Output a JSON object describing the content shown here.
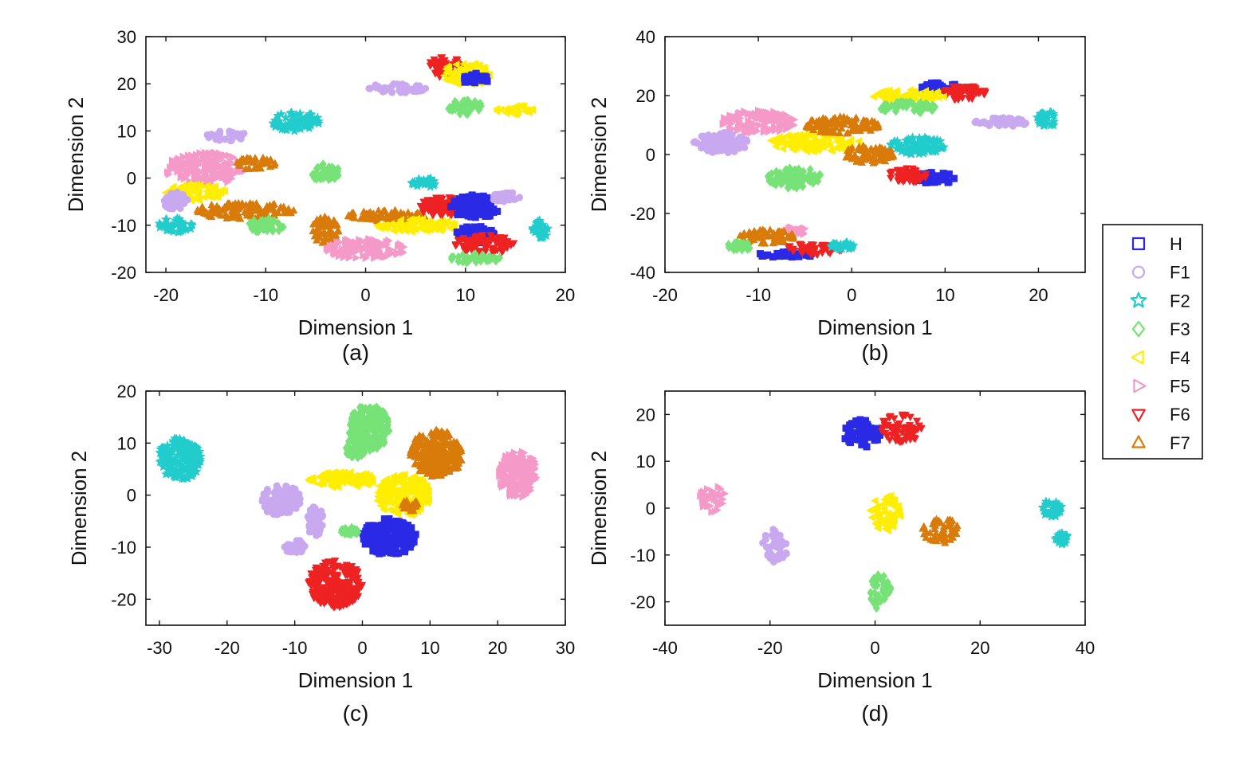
{
  "legend": {
    "entries": [
      {
        "label": "H",
        "marker": "square",
        "color": "#2a2ae6"
      },
      {
        "label": "F1",
        "marker": "circle",
        "color": "#c8a8ee"
      },
      {
        "label": "F2",
        "marker": "star",
        "color": "#22cccc"
      },
      {
        "label": "F3",
        "marker": "diamond",
        "color": "#77e277"
      },
      {
        "label": "F4",
        "marker": "triangle-left",
        "color": "#ffee00"
      },
      {
        "label": "F5",
        "marker": "triangle-right",
        "color": "#f59ac8"
      },
      {
        "label": "F6",
        "marker": "triangle-down",
        "color": "#ee2222"
      },
      {
        "label": "F7",
        "marker": "triangle-up",
        "color": "#d97b0a"
      }
    ]
  },
  "chart_data": [
    {
      "panel": "(a)",
      "type": "scatter",
      "xlabel": "Dimension 1",
      "ylabel": "Dimension 2",
      "xlim": [
        -22,
        20
      ],
      "ylim": [
        -20,
        30
      ],
      "xticks": [
        -20,
        -10,
        0,
        10,
        20
      ],
      "yticks": [
        -20,
        -10,
        0,
        10,
        20,
        30
      ],
      "clusters": [
        {
          "series": "F6",
          "cx": 8,
          "cy": 23.5,
          "rx": 1.8,
          "ry": 2.2
        },
        {
          "series": "F4",
          "cx": 10,
          "cy": 22,
          "rx": 2.5,
          "ry": 2.5
        },
        {
          "series": "H",
          "cx": 11,
          "cy": 21,
          "rx": 1.3,
          "ry": 1.2
        },
        {
          "series": "F1",
          "cx": 3,
          "cy": 19,
          "rx": 3,
          "ry": 1.0
        },
        {
          "series": "F3",
          "cx": 10,
          "cy": 15,
          "rx": 1.8,
          "ry": 1.5
        },
        {
          "series": "F4",
          "cx": 15,
          "cy": 14.5,
          "rx": 2,
          "ry": 1.0
        },
        {
          "series": "F2",
          "cx": -7,
          "cy": 12,
          "rx": 2.5,
          "ry": 2.0
        },
        {
          "series": "F1",
          "cx": -14,
          "cy": 9,
          "rx": 2,
          "ry": 1.2
        },
        {
          "series": "F5",
          "cx": -16,
          "cy": 2,
          "rx": 4,
          "ry": 3.5
        },
        {
          "series": "F7",
          "cx": -11,
          "cy": 3,
          "rx": 2,
          "ry": 1.5
        },
        {
          "series": "F3",
          "cx": -4,
          "cy": 1,
          "rx": 1.5,
          "ry": 2.0
        },
        {
          "series": "F4",
          "cx": -17,
          "cy": -3,
          "rx": 3,
          "ry": 1.8
        },
        {
          "series": "F1",
          "cx": -19,
          "cy": -5,
          "rx": 1.2,
          "ry": 2.0
        },
        {
          "series": "F2",
          "cx": -19,
          "cy": -10,
          "rx": 1.8,
          "ry": 1.5
        },
        {
          "series": "F7",
          "cx": -12,
          "cy": -7,
          "rx": 5,
          "ry": 1.8
        },
        {
          "series": "F7",
          "cx": -4,
          "cy": -11,
          "rx": 1.5,
          "ry": 3.0
        },
        {
          "series": "F3",
          "cx": -10,
          "cy": -10,
          "rx": 2,
          "ry": 1.5
        },
        {
          "series": "F7",
          "cx": 2,
          "cy": -8,
          "rx": 4,
          "ry": 1.2
        },
        {
          "series": "F4",
          "cx": 5,
          "cy": -10,
          "rx": 4,
          "ry": 1.5
        },
        {
          "series": "F6",
          "cx": 8,
          "cy": -6,
          "rx": 3,
          "ry": 2.0
        },
        {
          "series": "H",
          "cx": 11,
          "cy": -6,
          "rx": 2.5,
          "ry": 2.5
        },
        {
          "series": "F1",
          "cx": 14,
          "cy": -4,
          "rx": 1.5,
          "ry": 1.0
        },
        {
          "series": "F2",
          "cx": 6,
          "cy": -1,
          "rx": 1.5,
          "ry": 1.0
        },
        {
          "series": "F5",
          "cx": 0,
          "cy": -15,
          "rx": 4,
          "ry": 2.2
        },
        {
          "series": "H",
          "cx": 11,
          "cy": -12,
          "rx": 2,
          "ry": 1.8
        },
        {
          "series": "F6",
          "cx": 12,
          "cy": -14,
          "rx": 3,
          "ry": 2.0
        },
        {
          "series": "F3",
          "cx": 11,
          "cy": -17,
          "rx": 2.5,
          "ry": 1.0
        },
        {
          "series": "F2",
          "cx": 17.5,
          "cy": -11,
          "rx": 0.8,
          "ry": 2.0
        }
      ]
    },
    {
      "panel": "(b)",
      "type": "scatter",
      "xlabel": "Dimension 1",
      "ylabel": "Dimension 2",
      "xlim": [
        -20,
        25
      ],
      "ylim": [
        -40,
        40
      ],
      "xticks": [
        -20,
        -10,
        0,
        10,
        20
      ],
      "yticks": [
        -40,
        -20,
        0,
        20,
        40
      ],
      "clusters": [
        {
          "series": "H",
          "cx": 9.5,
          "cy": 23,
          "rx": 2,
          "ry": 1.5
        },
        {
          "series": "F6",
          "cx": 12,
          "cy": 21,
          "rx": 2.5,
          "ry": 2.5
        },
        {
          "series": "F4",
          "cx": 6,
          "cy": 20,
          "rx": 4,
          "ry": 2.0
        },
        {
          "series": "F3",
          "cx": 6,
          "cy": 16,
          "rx": 3,
          "ry": 2.0
        },
        {
          "series": "F1",
          "cx": 16,
          "cy": 11,
          "rx": 3,
          "ry": 1.5
        },
        {
          "series": "F2",
          "cx": 21,
          "cy": 12,
          "rx": 1.2,
          "ry": 2.5
        },
        {
          "series": "F5",
          "cx": -10,
          "cy": 11,
          "rx": 4,
          "ry": 4.0
        },
        {
          "series": "F1",
          "cx": -14,
          "cy": 4,
          "rx": 3,
          "ry": 3.5
        },
        {
          "series": "F4",
          "cx": -4,
          "cy": 4,
          "rx": 5,
          "ry": 3.0
        },
        {
          "series": "F7",
          "cx": -1,
          "cy": 10,
          "rx": 4,
          "ry": 3.0
        },
        {
          "series": "F7",
          "cx": 2,
          "cy": 0,
          "rx": 3,
          "ry": 3.0
        },
        {
          "series": "F2",
          "cx": 7,
          "cy": 3,
          "rx": 3,
          "ry": 3.0
        },
        {
          "series": "H",
          "cx": 9,
          "cy": -8,
          "rx": 2,
          "ry": 2.0
        },
        {
          "series": "F6",
          "cx": 6,
          "cy": -7,
          "rx": 2,
          "ry": 2.5
        },
        {
          "series": "F3",
          "cx": -6,
          "cy": -8,
          "rx": 3,
          "ry": 3.5
        },
        {
          "series": "F5",
          "cx": -6,
          "cy": -26,
          "rx": 1.2,
          "ry": 1.5
        },
        {
          "series": "F7",
          "cx": -9,
          "cy": -28,
          "rx": 3,
          "ry": 2.5
        },
        {
          "series": "F3",
          "cx": -12,
          "cy": -31,
          "rx": 1.5,
          "ry": 1.5
        },
        {
          "series": "H",
          "cx": -7,
          "cy": -34,
          "rx": 3,
          "ry": 1.0
        },
        {
          "series": "F6",
          "cx": -4,
          "cy": -32,
          "rx": 3,
          "ry": 2.0
        },
        {
          "series": "F2",
          "cx": -1,
          "cy": -31,
          "rx": 1.2,
          "ry": 1.5
        }
      ]
    },
    {
      "panel": "(c)",
      "type": "scatter",
      "xlabel": "Dimension 1",
      "ylabel": "Dimension 2",
      "xlim": [
        -32,
        30
      ],
      "ylim": [
        -25,
        20
      ],
      "xticks": [
        -30,
        -20,
        -10,
        0,
        10,
        20,
        30
      ],
      "yticks": [
        -20,
        -10,
        0,
        10,
        20
      ],
      "clusters": [
        {
          "series": "F2",
          "cx": -27,
          "cy": 7,
          "rx": 3.2,
          "ry": 4.0
        },
        {
          "series": "F3",
          "cx": 1,
          "cy": 13,
          "rx": 3,
          "ry": 4.5
        },
        {
          "series": "F3",
          "cx": -1,
          "cy": 9,
          "rx": 1.5,
          "ry": 2.0
        },
        {
          "series": "F7",
          "cx": 11,
          "cy": 8,
          "rx": 4,
          "ry": 4.5
        },
        {
          "series": "F5",
          "cx": 23,
          "cy": 4,
          "rx": 3,
          "ry": 4.5
        },
        {
          "series": "F4",
          "cx": -3,
          "cy": 3,
          "rx": 5,
          "ry": 1.5
        },
        {
          "series": "F4",
          "cx": 6,
          "cy": 0,
          "rx": 4,
          "ry": 4.0
        },
        {
          "series": "F7",
          "cx": 7,
          "cy": -2,
          "rx": 1.2,
          "ry": 1.2
        },
        {
          "series": "F1",
          "cx": -12,
          "cy": -1,
          "rx": 3,
          "ry": 3.0
        },
        {
          "series": "F1",
          "cx": -7,
          "cy": -5,
          "rx": 1.2,
          "ry": 3.0
        },
        {
          "series": "F1",
          "cx": -10,
          "cy": -10,
          "rx": 1.5,
          "ry": 1.5
        },
        {
          "series": "H",
          "cx": 4,
          "cy": -8,
          "rx": 4,
          "ry": 3.5
        },
        {
          "series": "F6",
          "cx": -4,
          "cy": -17,
          "rx": 4,
          "ry": 4.5
        },
        {
          "series": "F3",
          "cx": -2,
          "cy": -7,
          "rx": 1.5,
          "ry": 0.8
        }
      ]
    },
    {
      "panel": "(d)",
      "type": "scatter",
      "xlabel": "Dimension 1",
      "ylabel": "Dimension 2",
      "xlim": [
        -40,
        40
      ],
      "ylim": [
        -25,
        25
      ],
      "xticks": [
        -40,
        -20,
        0,
        20,
        40
      ],
      "yticks": [
        -20,
        -10,
        0,
        10,
        20
      ],
      "clusters": [
        {
          "series": "H",
          "cx": -2.5,
          "cy": 16,
          "rx": 3.5,
          "ry": 3.0
        },
        {
          "series": "F6",
          "cx": 5,
          "cy": 17,
          "rx": 4,
          "ry": 3.2
        },
        {
          "series": "F5",
          "cx": -31,
          "cy": 2,
          "rx": 2.5,
          "ry": 3.0
        },
        {
          "series": "F1",
          "cx": -19,
          "cy": -8,
          "rx": 2.5,
          "ry": 3.5
        },
        {
          "series": "F4",
          "cx": 2,
          "cy": -1,
          "rx": 3,
          "ry": 4.0
        },
        {
          "series": "F7",
          "cx": 12.5,
          "cy": -5,
          "rx": 3.5,
          "ry": 3.0
        },
        {
          "series": "F3",
          "cx": 1,
          "cy": -18,
          "rx": 2,
          "ry": 4.0
        },
        {
          "series": "F2",
          "cx": 33.5,
          "cy": 0,
          "rx": 2,
          "ry": 2.0
        },
        {
          "series": "F2",
          "cx": 35.5,
          "cy": -6.5,
          "rx": 1.2,
          "ry": 1.2
        }
      ]
    }
  ]
}
